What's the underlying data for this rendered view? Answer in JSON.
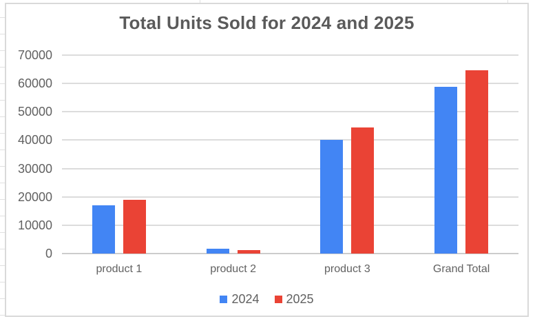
{
  "chart_data": {
    "type": "bar",
    "title": "Total Units Sold for 2024 and 2025",
    "categories": [
      "product 1",
      "product 2",
      "product 3",
      "Grand Total"
    ],
    "series": [
      {
        "name": "2024",
        "color": "#4285F4",
        "values": [
          17000,
          1800,
          40000,
          58800
        ]
      },
      {
        "name": "2025",
        "color": "#EA4335",
        "values": [
          19000,
          1100,
          44500,
          64600
        ]
      }
    ],
    "xlabel": "",
    "ylabel": "",
    "ylim": [
      0,
      70000
    ],
    "yticks": [
      0,
      10000,
      20000,
      30000,
      40000,
      50000,
      60000,
      70000
    ],
    "grid": true,
    "legend_position": "bottom",
    "colors": {
      "series_2024": "#4285F4",
      "series_2025": "#EA4335",
      "title_text": "#5a5a5a",
      "axis_text": "#616161",
      "gridline": "#dcdcdc",
      "chart_border": "#d9d9d9"
    }
  }
}
